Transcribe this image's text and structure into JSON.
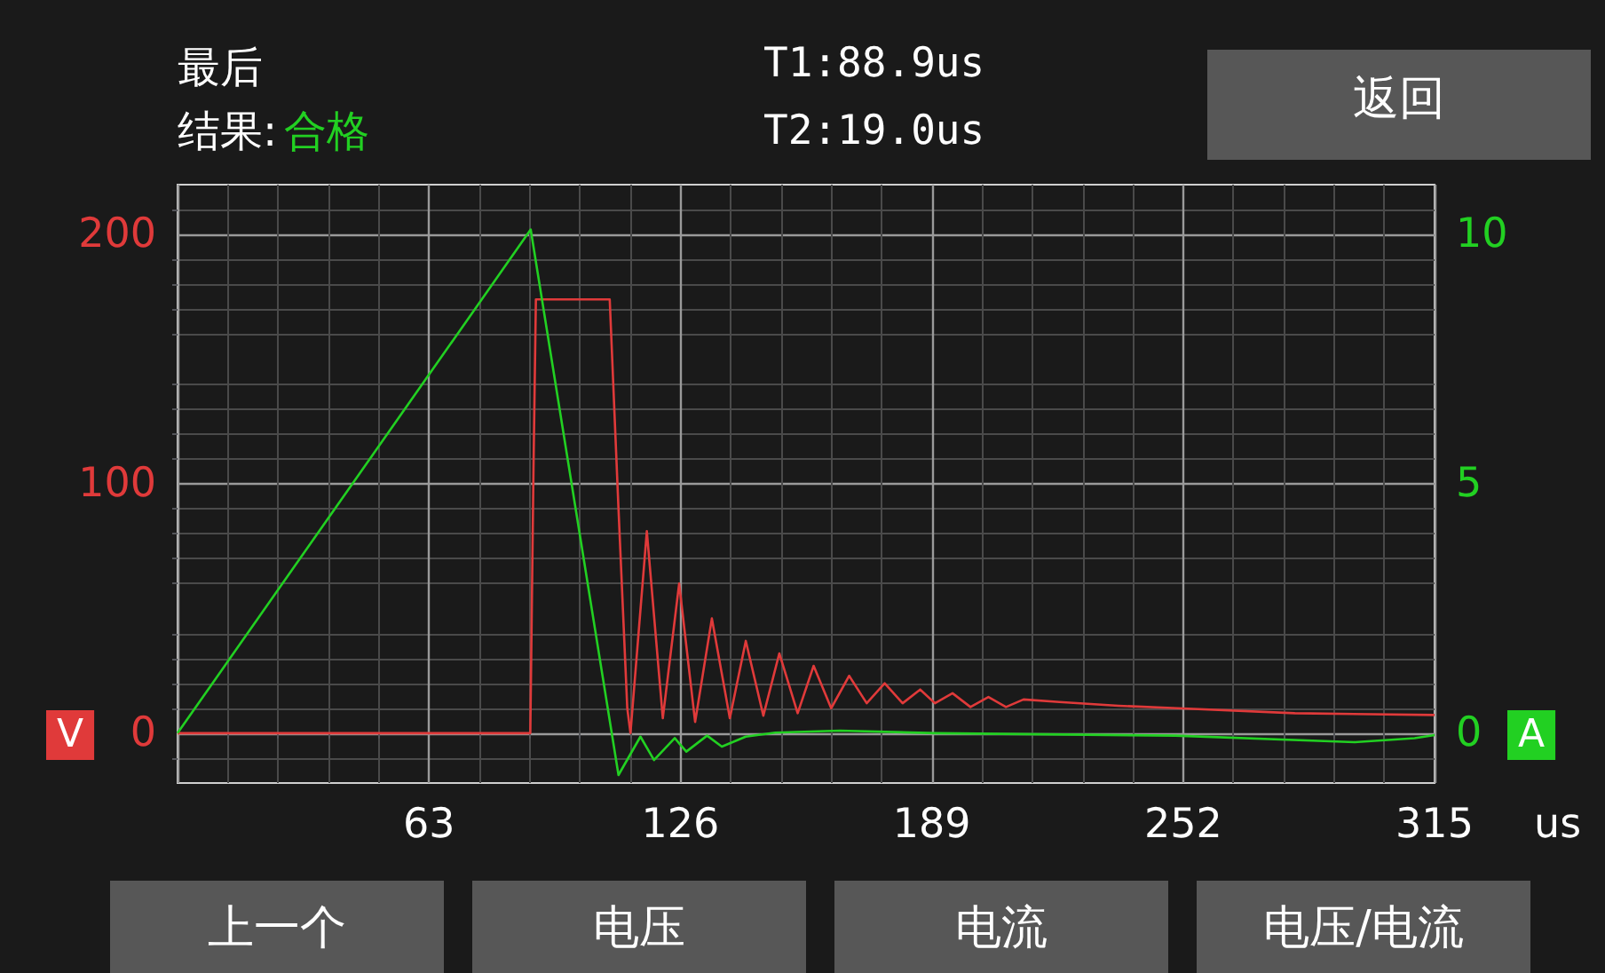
{
  "chart_data": {
    "type": "line",
    "xlabel": "us",
    "ylabel": "V",
    "y2label": "A",
    "annotations": [
      "最后",
      "结果:",
      "合格",
      "T1:88.9us",
      "T2:19.0us",
      "返回",
      "上一个",
      "电压",
      "电流",
      "电压/电流"
    ],
    "xlim": [
      0,
      315
    ],
    "xticks": [
      {
        "value": 0,
        "label": null
      },
      63,
      126,
      189,
      252,
      315
    ],
    "ylim": [
      -20,
      220
    ],
    "yticks": [
      0,
      100,
      200
    ],
    "y2lim": [
      -1,
      11
    ],
    "y2ticks": [
      0,
      5,
      10
    ],
    "grid": true,
    "marker": "none",
    "line_style": "solid",
    "series": [
      {
        "color": "#e03a3a",
        "x": [
          0,
          88.4,
          89.2,
          89.8,
          108.3,
          110.5,
          112.7,
          113.5,
          117.6,
          121.6,
          125.7,
          129.7,
          133.9,
          138.4,
          142.4,
          146.8,
          150.8,
          155.4,
          159.4,
          163.8,
          168.3,
          172.7,
          177.2,
          181.7,
          186.1,
          189.8,
          194.2,
          198.7,
          203.2,
          207.6,
          212,
          221,
          235.8,
          250.6,
          280,
          315
        ],
        "values": [
          0,
          0,
          106,
          174,
          174,
          90,
          10,
          0,
          81,
          6,
          60,
          4.5,
          46,
          6,
          37,
          7,
          32,
          8,
          27,
          10,
          23,
          12,
          20,
          12,
          17.5,
          12,
          16,
          10.5,
          14.5,
          10.5,
          13.5,
          12.5,
          11,
          10,
          8,
          7.3
        ]
      },
      {
        "color": "#22d022",
        "axis": "y2",
        "x": [
          0,
          88.5,
          110.5,
          116,
          119.4,
          124.6,
          127.5,
          132.7,
          136.4,
          142.4,
          149.8,
          166,
          190,
          250,
          295,
          310,
          315
        ],
        "values": [
          0,
          10.1,
          -0.84,
          -0.07,
          -0.54,
          -0.1,
          -0.37,
          -0.05,
          -0.27,
          -0.07,
          0.01,
          0.05,
          0,
          -0.05,
          -0.18,
          -0.1,
          -0.04
        ]
      }
    ]
  }
}
